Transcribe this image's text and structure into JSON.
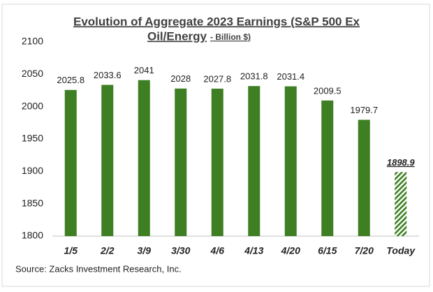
{
  "chart_data": {
    "type": "bar",
    "title_lines": [
      "Evolution of Aggregate 2023 Earnings (S&P 500 Ex",
      "Oil/Energy"
    ],
    "title_suffix": "- Billion $)",
    "categories": [
      "1/5",
      "2/2",
      "3/9",
      "3/30",
      "4/6",
      "4/13",
      "4/20",
      "6/15",
      "7/20",
      "Today"
    ],
    "values": [
      2025.8,
      2033.6,
      2041,
      2028,
      2027.8,
      2031.8,
      2031.4,
      2009.5,
      1979.7,
      1898.9
    ],
    "color": "#3d7f22",
    "ylim": [
      1800,
      2100
    ],
    "yticks": [
      1800,
      1850,
      1900,
      1950,
      2000,
      2050,
      2100
    ],
    "grid": false,
    "source": "Source: Zacks Investment Research, Inc."
  }
}
